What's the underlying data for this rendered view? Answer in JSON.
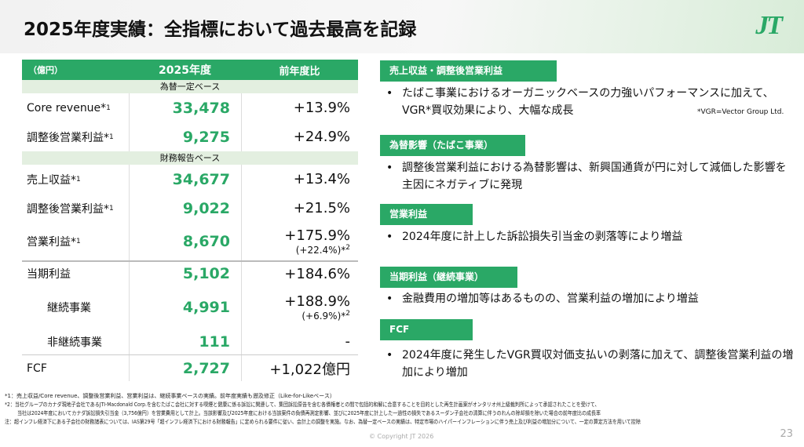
{
  "title": "2025年度実績：全指標において過去最高を記録",
  "logo": "JT",
  "table": {
    "headers": [
      "（億円）",
      "2025年度",
      "前年度比"
    ],
    "band1": "為替一定ベース",
    "band2": "財務報告ベース",
    "rows": [
      {
        "label": "Core revenue*",
        "sup": "1",
        "value": "33,478",
        "change": "+13.9%"
      },
      {
        "label": "調整後営業利益*",
        "sup": "1",
        "value": "9,275",
        "change": "+24.9%"
      },
      {
        "label": "売上収益*",
        "sup": "1",
        "value": "34,677",
        "change": "+13.4%"
      },
      {
        "label": "調整後営業利益*",
        "sup": "1",
        "value": "9,022",
        "change": "+21.5%"
      },
      {
        "label": "営業利益*",
        "sup": "1",
        "value": "8,670",
        "change": "+175.9%",
        "sub": "(+22.4%)*",
        "subsup": "2"
      },
      {
        "label": "当期利益",
        "value": "5,102",
        "change": "+184.6%"
      },
      {
        "label": "継続事業",
        "value": "4,991",
        "change": "+188.9%",
        "sub": "(+6.9%)*",
        "subsup": "2"
      },
      {
        "label": "非継続事業",
        "value": "111",
        "change": "-"
      },
      {
        "label": "FCF",
        "value": "2,727",
        "change": "+1,022億円"
      }
    ]
  },
  "sections": [
    {
      "title": "売上収益・調整後営業利益",
      "bullets": [
        "たばこ事業におけるオーガニックベースの力強いパフォーマンスに加えて、VGR*買収効果により、大幅な成長"
      ],
      "note": "*VGR=Vector Group Ltd."
    },
    {
      "title": "為替影響（たばこ事業）",
      "bullets": [
        "調整後営業利益における為替影響は、新興国通貨が円に対して減価した影響を主因にネガティブに発現"
      ]
    },
    {
      "title": "営業利益",
      "bullets": [
        "2024年度に計上した訴訟損失引当金の剥落等により増益"
      ]
    },
    {
      "title": "当期利益（継続事業）",
      "bullets": [
        "金融費用の増加等はあるものの、営業利益の増加により増益"
      ]
    },
    {
      "title": "FCF",
      "bullets": [
        "2024年度に発生したVGR買収対価支払いの剥落に加えて、調整後営業利益の増加により増加"
      ]
    }
  ],
  "footnotes": [
    "*1：売上収益/Core revenue、調整後営業利益、営業利益は、継続事業ベースの実績。前年度実績も遡及修正（Like-for-Likeベース）",
    "*2：当社グループのカナダ現地子会社であるJTI-Macdonald Corp.を含むたばこ会社に対する喫煙と健康に係る訴訟に関連して、集団訴訟原告を含む各債権者との間で包括的和解に合意することを目的とした再生計画案がオンタリオ州上級裁判所によって承認されたことを受けて、",
    "当社は2024年度においてカナダ訴訟損失引当金（3,756億円）を営業費用として計上。当該影響及び2025年度における当該案件の負債再測定影響、並びに2025年度に計上した一過性の損失であるスーダン子会社の清算に伴うのれんの除却損を除いた場合の前年度比の成長率",
    "注：超インフレ経済下にある子会社の財務諸表については、IAS第29号「超インフレ経済下における財務報告」に定められる要件に従い、会計上の調整を実施。なお、為替一定ベースの実績は、特定市場のハイパーインフレーションに伴う売上及び利益の増加分について、一定の算定方法を用いて控除"
  ],
  "copyright": "© Copyright JT 2026",
  "page_number": "23",
  "colors": {
    "accent": "#2aa866",
    "band": "#e3efe0"
  }
}
